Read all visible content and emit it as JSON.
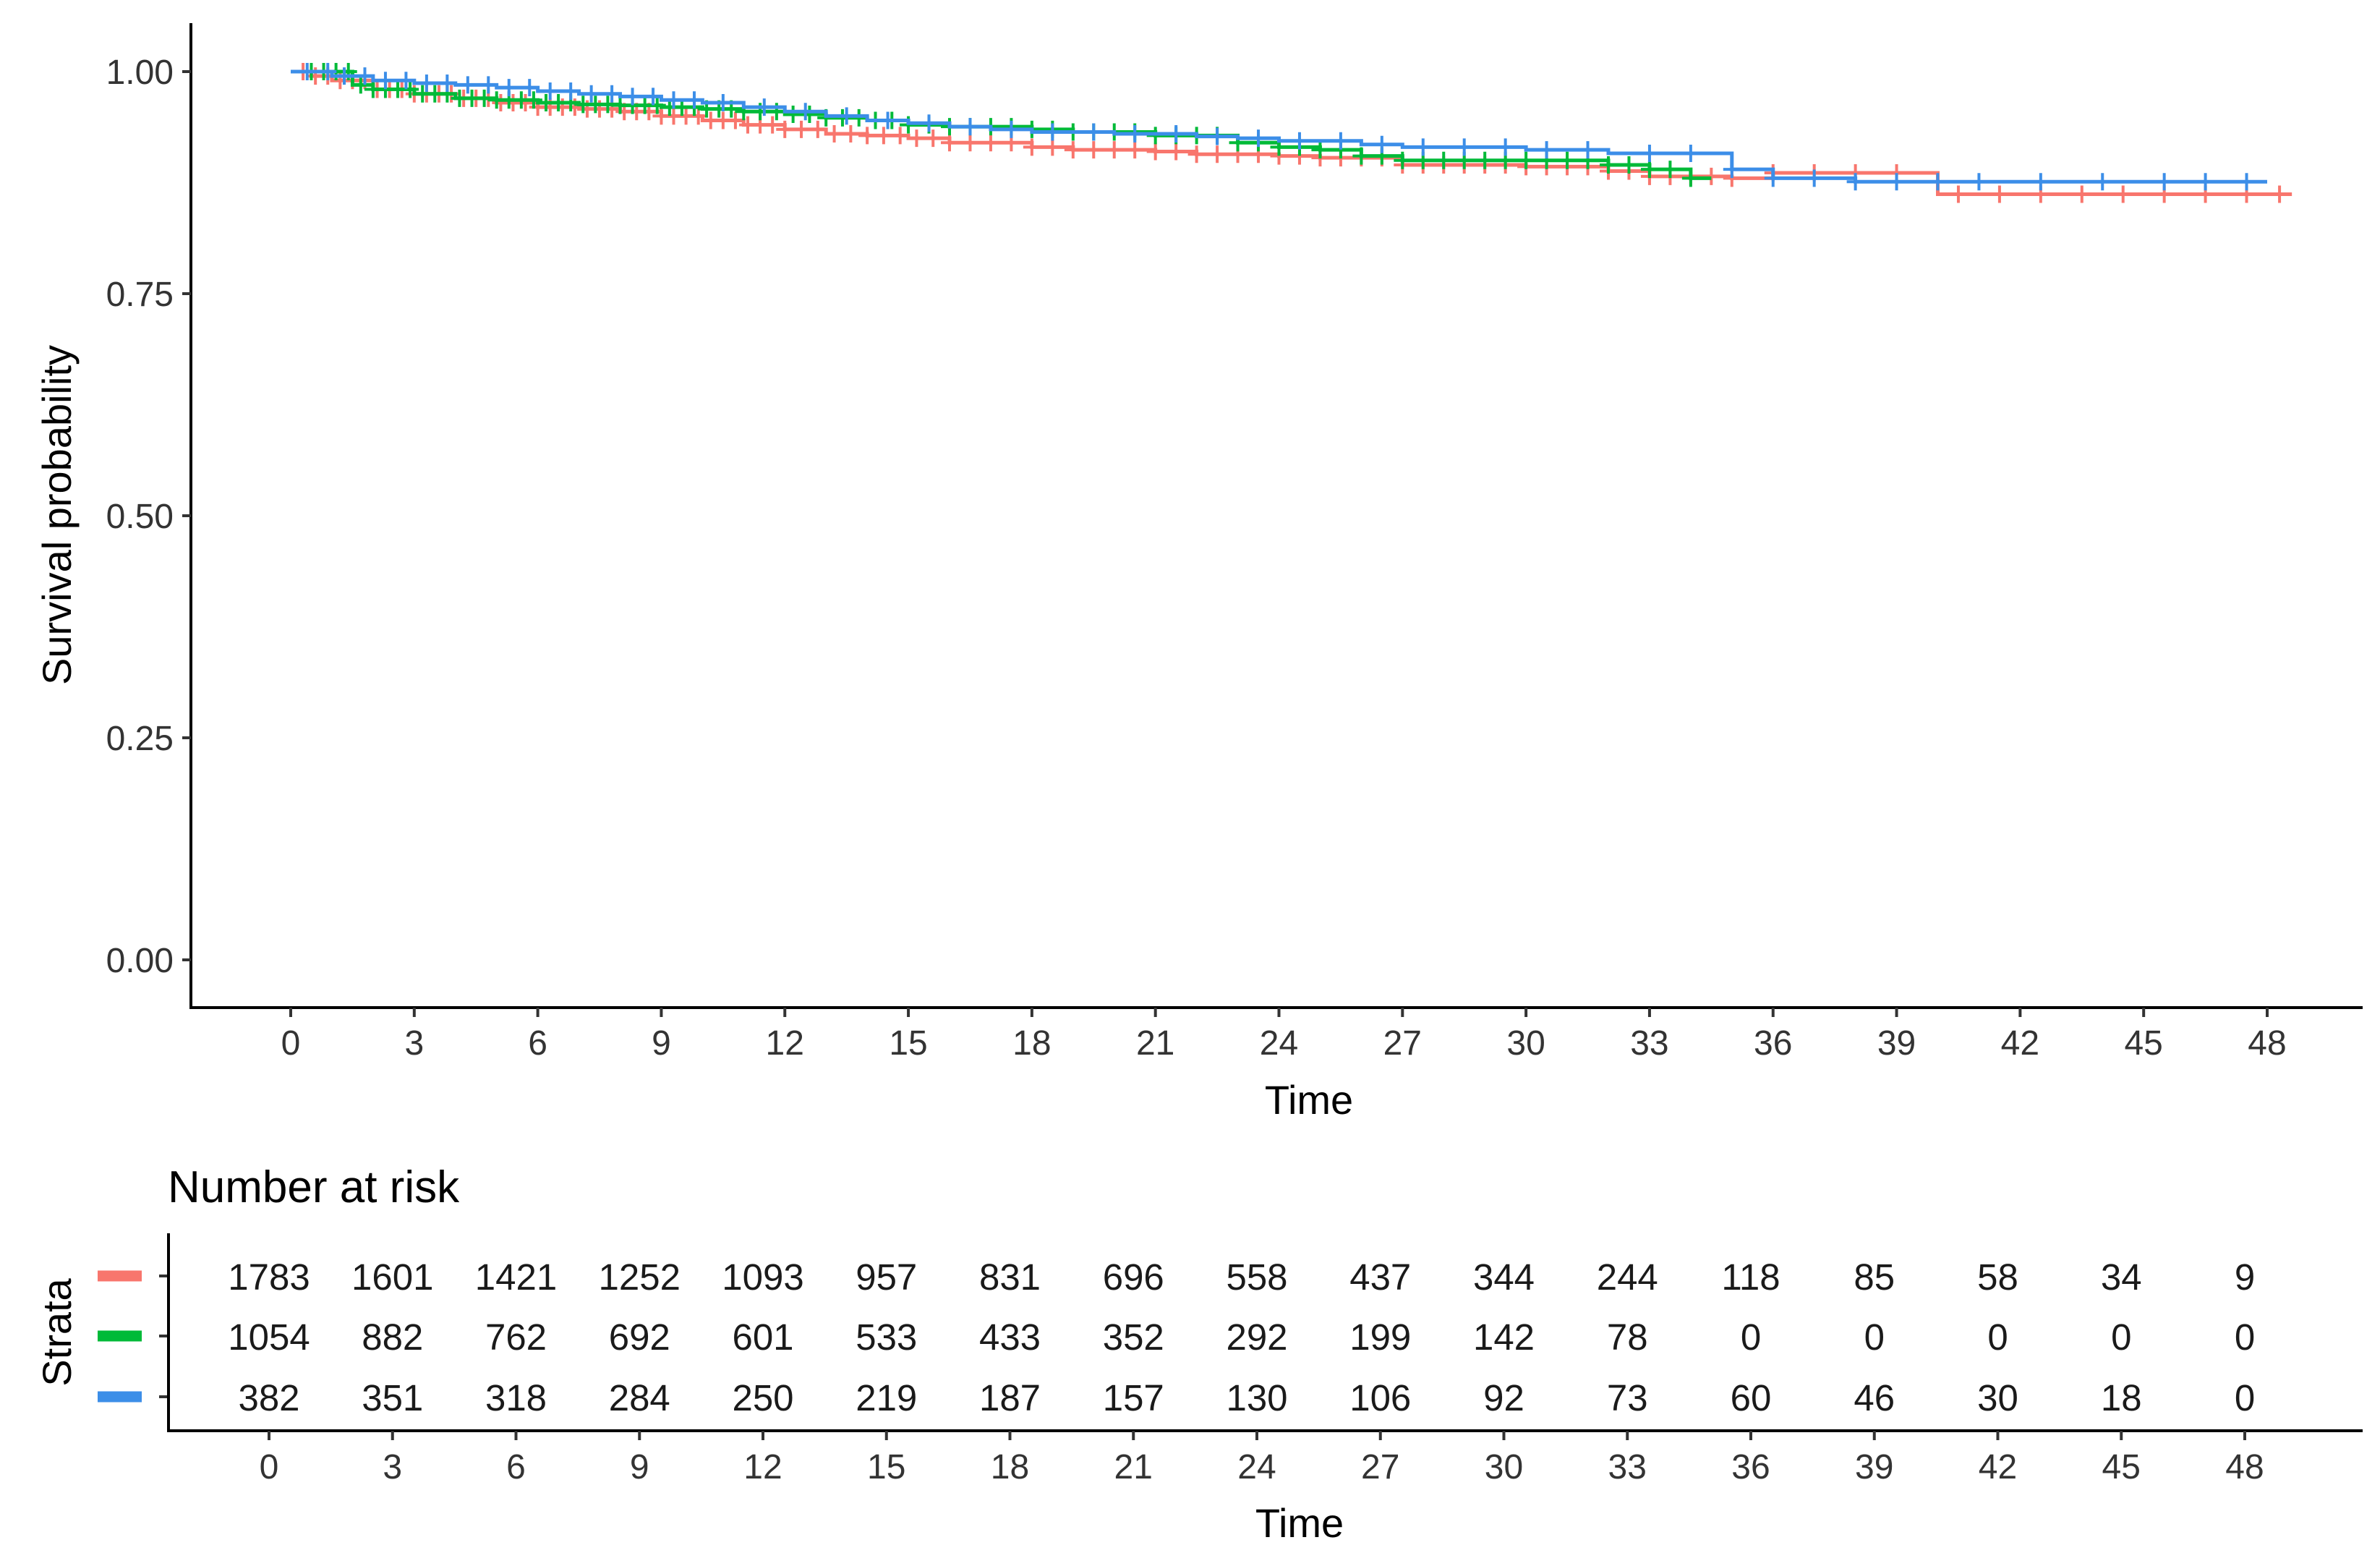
{
  "chart_data": [
    {
      "type": "line",
      "subtype": "kaplan-meier",
      "xlabel": "Time",
      "ylabel": "Survival probability",
      "xlim": [
        0,
        48
      ],
      "ylim": [
        0,
        1
      ],
      "x_ticks": [
        0,
        3,
        6,
        9,
        12,
        15,
        18,
        21,
        24,
        27,
        30,
        33,
        36,
        39,
        42,
        45,
        48
      ],
      "y_ticks": [
        "0.00",
        "0.25",
        "0.50",
        "0.75",
        "1.00"
      ],
      "grid": false,
      "legend": "none",
      "series": [
        {
          "color": "#f8766d",
          "steps": [
            [
              0,
              1.0
            ],
            [
              0.5,
              0.995
            ],
            [
              1,
              0.99
            ],
            [
              2,
              0.98
            ],
            [
              3,
              0.975
            ],
            [
              4,
              0.97
            ],
            [
              5,
              0.965
            ],
            [
              6,
              0.96
            ],
            [
              7,
              0.958
            ],
            [
              8,
              0.955
            ],
            [
              9,
              0.95
            ],
            [
              10,
              0.945
            ],
            [
              11,
              0.94
            ],
            [
              12,
              0.935
            ],
            [
              13,
              0.93
            ],
            [
              14,
              0.928
            ],
            [
              15,
              0.925
            ],
            [
              16,
              0.92
            ],
            [
              18,
              0.915
            ],
            [
              19,
              0.912
            ],
            [
              21,
              0.91
            ],
            [
              22,
              0.907
            ],
            [
              24,
              0.905
            ],
            [
              25,
              0.903
            ],
            [
              27,
              0.895
            ],
            [
              30,
              0.893
            ],
            [
              32,
              0.888
            ],
            [
              33,
              0.882
            ],
            [
              35,
              0.88
            ],
            [
              36,
              0.886
            ],
            [
              40,
              0.862
            ],
            [
              48.6,
              0.862
            ]
          ],
          "censor_x": [
            0.3,
            0.6,
            0.9,
            1.2,
            1.5,
            1.8,
            2.1,
            2.4,
            2.7,
            3.0,
            3.3,
            3.6,
            3.9,
            4.2,
            4.5,
            4.8,
            5.1,
            5.4,
            5.7,
            6.0,
            6.3,
            6.6,
            6.9,
            7.2,
            7.5,
            7.8,
            8.1,
            8.4,
            8.7,
            9.0,
            9.3,
            9.6,
            9.9,
            10.2,
            10.5,
            10.8,
            11.1,
            11.4,
            11.7,
            12.0,
            12.4,
            12.8,
            13.2,
            13.6,
            14.0,
            14.4,
            14.8,
            15.2,
            15.6,
            16.0,
            16.5,
            17.0,
            17.5,
            18.0,
            18.5,
            19.0,
            19.5,
            20.0,
            20.5,
            21.0,
            21.5,
            22.0,
            22.5,
            23.0,
            23.5,
            24.0,
            24.5,
            25.0,
            25.5,
            26.0,
            26.5,
            27.0,
            27.5,
            28.0,
            28.5,
            29.0,
            29.5,
            30.0,
            30.5,
            31.0,
            31.5,
            32.0,
            32.5,
            33.0,
            33.5,
            34.0,
            34.5,
            35.0,
            36.0,
            37.0,
            38.0,
            39.0,
            40.5,
            41.5,
            42.5,
            43.5,
            44.5,
            45.5,
            46.5,
            47.5,
            48.3
          ]
        },
        {
          "color": "#00ba38",
          "steps": [
            [
              0,
              1.0
            ],
            [
              1.5,
              0.985
            ],
            [
              2,
              0.98
            ],
            [
              3,
              0.975
            ],
            [
              4,
              0.97
            ],
            [
              5,
              0.968
            ],
            [
              6,
              0.965
            ],
            [
              7,
              0.963
            ],
            [
              8,
              0.962
            ],
            [
              9,
              0.96
            ],
            [
              10,
              0.958
            ],
            [
              11,
              0.955
            ],
            [
              12,
              0.952
            ],
            [
              13,
              0.948
            ],
            [
              14,
              0.945
            ],
            [
              15,
              0.94
            ],
            [
              16,
              0.938
            ],
            [
              18,
              0.935
            ],
            [
              19,
              0.932
            ],
            [
              21,
              0.928
            ],
            [
              23,
              0.92
            ],
            [
              24,
              0.915
            ],
            [
              25,
              0.912
            ],
            [
              26,
              0.905
            ],
            [
              27,
              0.9
            ],
            [
              29,
              0.9
            ],
            [
              31,
              0.9
            ],
            [
              32,
              0.895
            ],
            [
              33,
              0.89
            ],
            [
              34,
              0.88
            ],
            [
              34.5,
              0.88
            ]
          ],
          "censor_x": [
            0.5,
            0.8,
            1.1,
            1.4,
            1.7,
            2.0,
            2.3,
            2.6,
            2.9,
            3.2,
            3.5,
            3.8,
            4.1,
            4.4,
            4.7,
            5.0,
            5.3,
            5.6,
            5.9,
            6.2,
            6.5,
            6.8,
            7.1,
            7.4,
            7.7,
            8.0,
            8.3,
            8.6,
            8.9,
            9.2,
            9.5,
            9.8,
            10.1,
            10.4,
            10.7,
            11.0,
            11.4,
            11.8,
            12.2,
            12.6,
            13.0,
            13.4,
            13.8,
            14.2,
            14.6,
            15.0,
            15.5,
            16.0,
            16.5,
            17.0,
            17.5,
            18.0,
            18.5,
            19.0,
            19.5,
            20.0,
            20.5,
            21.0,
            21.5,
            22.0,
            22.5,
            23.0,
            23.5,
            24.0,
            24.5,
            25.0,
            25.5,
            26.0,
            26.5,
            27.0,
            27.5,
            28.0,
            28.5,
            29.0,
            29.5,
            30.0,
            30.5,
            31.0,
            31.5,
            32.0,
            32.5,
            33.0,
            33.5,
            34.0
          ]
        },
        {
          "color": "#3c8ee8",
          "steps": [
            [
              0,
              1.0
            ],
            [
              1,
              0.995
            ],
            [
              2,
              0.99
            ],
            [
              3,
              0.987
            ],
            [
              4,
              0.985
            ],
            [
              5,
              0.982
            ],
            [
              6,
              0.978
            ],
            [
              7,
              0.975
            ],
            [
              8,
              0.972
            ],
            [
              9,
              0.968
            ],
            [
              10,
              0.965
            ],
            [
              11,
              0.96
            ],
            [
              12,
              0.955
            ],
            [
              13,
              0.95
            ],
            [
              14,
              0.945
            ],
            [
              15,
              0.942
            ],
            [
              16,
              0.938
            ],
            [
              17,
              0.935
            ],
            [
              18,
              0.932
            ],
            [
              20,
              0.93
            ],
            [
              22,
              0.927
            ],
            [
              23,
              0.925
            ],
            [
              24,
              0.922
            ],
            [
              26,
              0.918
            ],
            [
              27,
              0.915
            ],
            [
              30,
              0.912
            ],
            [
              32,
              0.908
            ],
            [
              35,
              0.89
            ],
            [
              36,
              0.88
            ],
            [
              38,
              0.876
            ],
            [
              40,
              0.876
            ],
            [
              48,
              0.876
            ]
          ],
          "censor_x": [
            0.4,
            0.9,
            1.3,
            1.8,
            2.3,
            2.8,
            3.3,
            3.8,
            4.3,
            4.8,
            5.3,
            5.8,
            6.3,
            6.8,
            7.3,
            7.8,
            8.3,
            8.8,
            9.3,
            9.8,
            10.5,
            11.5,
            12.5,
            13.5,
            14.5,
            15.5,
            16.5,
            17.5,
            18.5,
            19.5,
            20.5,
            21.5,
            22.5,
            23.5,
            24.5,
            25.5,
            26.5,
            27.5,
            28.5,
            29.5,
            30.5,
            31.5,
            33.0,
            34.0,
            35.0,
            36.0,
            37.0,
            38.0,
            39.0,
            40.0,
            41.0,
            42.5,
            44.0,
            45.5,
            46.5,
            47.5
          ]
        }
      ]
    },
    {
      "type": "table",
      "title": "Number at risk",
      "xlabel": "Time",
      "ylabel": "Strata",
      "x_ticks": [
        0,
        3,
        6,
        9,
        12,
        15,
        18,
        21,
        24,
        27,
        30,
        33,
        36,
        39,
        42,
        45,
        48
      ],
      "rows": [
        {
          "color": "#f8766d",
          "values": [
            1783,
            1601,
            1421,
            1252,
            1093,
            957,
            831,
            696,
            558,
            437,
            344,
            244,
            118,
            85,
            58,
            34,
            9
          ]
        },
        {
          "color": "#00ba38",
          "values": [
            1054,
            882,
            762,
            692,
            601,
            533,
            433,
            352,
            292,
            199,
            142,
            78,
            0,
            0,
            0,
            0,
            0
          ]
        },
        {
          "color": "#3c8ee8",
          "values": [
            382,
            351,
            318,
            284,
            250,
            219,
            187,
            157,
            130,
            106,
            92,
            73,
            60,
            46,
            30,
            18,
            0
          ]
        }
      ]
    }
  ]
}
